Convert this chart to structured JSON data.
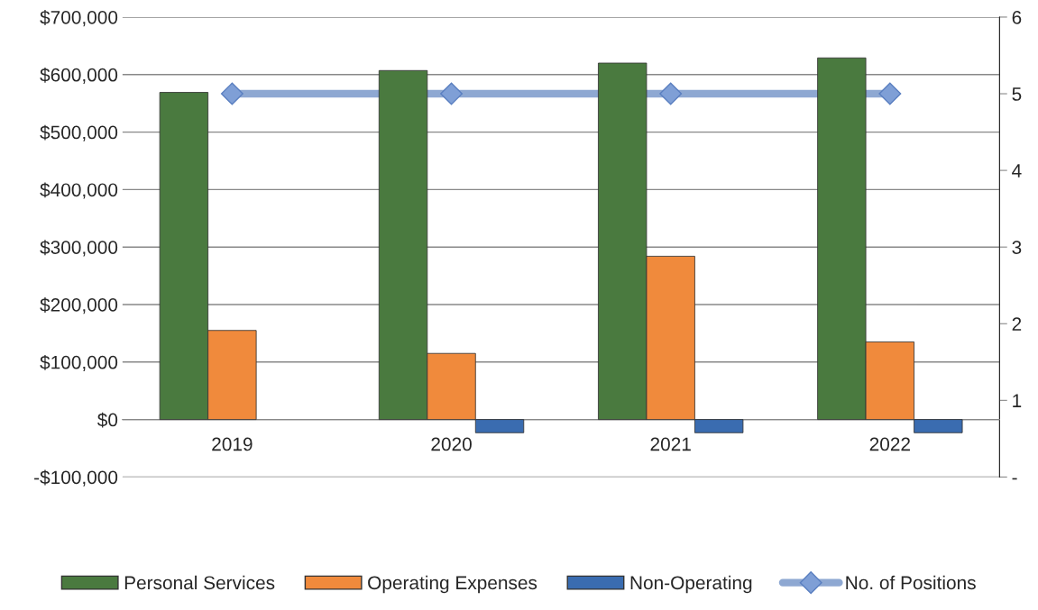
{
  "chart_data": {
    "type": "bar",
    "categories": [
      "2019",
      "2020",
      "2021",
      "2022"
    ],
    "series": [
      {
        "name": "Personal Services",
        "color": "#4a7a3f",
        "values": [
          569000,
          607000,
          620000,
          629000
        ]
      },
      {
        "name": "Operating Expenses",
        "color": "#f08a3c",
        "values": [
          155000,
          115000,
          284000,
          135000
        ]
      },
      {
        "name": "Non-Operating",
        "color": "#3a6cb0",
        "values": [
          null,
          -23000,
          -23000,
          -23000
        ]
      },
      {
        "name": "No. of Positions",
        "type": "line",
        "axis": "y2",
        "color": "#8ea8d2",
        "marker": "diamond",
        "values": [
          5,
          5,
          5,
          5
        ]
      }
    ],
    "ylim": [
      -100000,
      700000
    ],
    "yticks": [
      {
        "value": -100000,
        "label": "-$100,000"
      },
      {
        "value": 0,
        "label": "$0"
      },
      {
        "value": 100000,
        "label": "$100,000"
      },
      {
        "value": 200000,
        "label": "$200,000"
      },
      {
        "value": 300000,
        "label": "$300,000"
      },
      {
        "value": 400000,
        "label": "$400,000"
      },
      {
        "value": 500000,
        "label": "$500,000"
      },
      {
        "value": 600000,
        "label": "$600,000"
      },
      {
        "value": 700000,
        "label": "$700,000"
      }
    ],
    "y2lim": [
      0,
      6
    ],
    "y2ticks": [
      {
        "value": 0,
        "label": "-"
      },
      1,
      2,
      3,
      4,
      5,
      6
    ],
    "grid": "y",
    "legend": "bottom"
  }
}
